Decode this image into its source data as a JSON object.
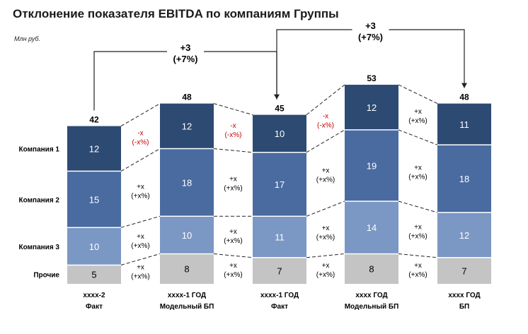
{
  "chart_data": {
    "type": "stacked-bar",
    "title": "Отклонение показателя EBITDA по компаниям Группы",
    "unit": "Млн руб.",
    "categories": [
      [
        "хххх-2",
        "Факт"
      ],
      [
        "хххх-1 ГОД",
        "Модельный БП"
      ],
      [
        "хххх-1 ГОД",
        "Факт"
      ],
      [
        "хххх ГОД",
        "Модельный БП"
      ],
      [
        "хххх ГОД",
        "БП"
      ]
    ],
    "series": [
      {
        "name": "Прочие",
        "color": "#c4c4c4",
        "text_color": "#000000",
        "values": [
          5,
          8,
          7,
          8,
          7
        ]
      },
      {
        "name": "Компания 3",
        "color": "#7b97c4",
        "text_color": "#ffffff",
        "values": [
          10,
          10,
          11,
          14,
          12
        ]
      },
      {
        "name": "Компания 2",
        "color": "#4a6ba0",
        "text_color": "#ffffff",
        "values": [
          15,
          18,
          17,
          19,
          18
        ]
      },
      {
        "name": "Компания 1",
        "color": "#2d4a73",
        "text_color": "#ffffff",
        "values": [
          12,
          12,
          10,
          12,
          11
        ]
      }
    ],
    "totals": [
      42,
      48,
      45,
      53,
      48
    ],
    "deltas_between_bars": [
      [
        {
          "text": "+x\n(+x%)",
          "color": "#000000"
        },
        {
          "text": "+x\n(+x%)",
          "color": "#000000"
        },
        {
          "text": "+x\n(+x%)",
          "color": "#000000"
        },
        {
          "text": "-x\n(-x%)",
          "color": "#c00000"
        }
      ],
      [
        {
          "text": "+x\n(+x%)",
          "color": "#000000"
        },
        {
          "text": "+x\n(+x%)",
          "color": "#000000"
        },
        {
          "text": "+x\n(+x%)",
          "color": "#000000"
        },
        {
          "text": "-x\n(-x%)",
          "color": "#c00000"
        }
      ],
      [
        {
          "text": "+x\n(+x%)",
          "color": "#000000"
        },
        {
          "text": "+x\n(+x%)",
          "color": "#000000"
        },
        {
          "text": "+x\n(+x%)",
          "color": "#000000"
        },
        {
          "text": "-x\n(-x%)",
          "color": "#c00000"
        }
      ],
      [
        {
          "text": "+x\n(+x%)",
          "color": "#000000"
        },
        {
          "text": "+x\n(+x%)",
          "color": "#000000"
        },
        {
          "text": "+x\n(+x%)",
          "color": "#000000"
        },
        {
          "text": "+x\n(+x%)",
          "color": "#000000"
        }
      ]
    ],
    "comparisons": [
      {
        "from": 0,
        "to": 2,
        "label": [
          "+3",
          "(+7%)"
        ]
      },
      {
        "from": 2,
        "to": 4,
        "label": [
          "+3",
          "(+7%)"
        ]
      }
    ],
    "ylim": [
      0,
      53
    ]
  }
}
